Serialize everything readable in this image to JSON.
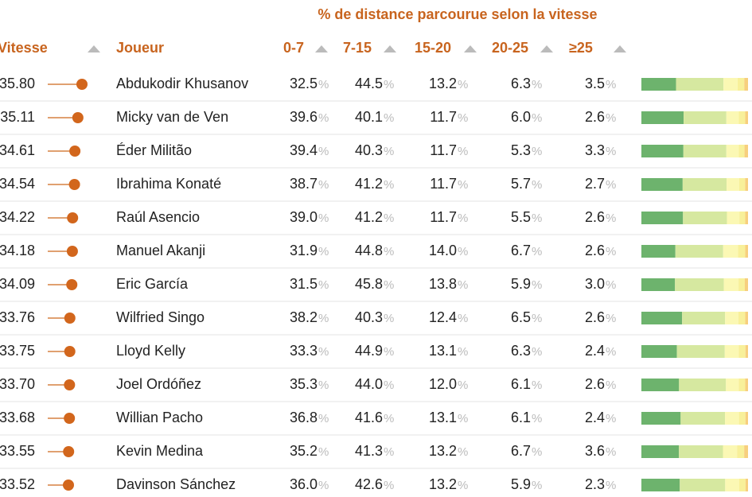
{
  "header": {
    "group_title": "% de distance parcourue selon la vitesse",
    "columns": [
      "Vitesse",
      "Joueur",
      "0-7",
      "7-15",
      "15-20",
      "20-25",
      "≥25"
    ]
  },
  "unit": "%",
  "rows": [
    {
      "speed": "35.80",
      "player": "Abdukodir Khusanov",
      "pct": [
        "32.5",
        "44.5",
        "13.2",
        "6.3",
        "3.5"
      ]
    },
    {
      "speed": "35.11",
      "player": "Micky van de Ven",
      "pct": [
        "39.6",
        "40.1",
        "11.7",
        "6.0",
        "2.6"
      ]
    },
    {
      "speed": "34.61",
      "player": "Éder Militão",
      "pct": [
        "39.4",
        "40.3",
        "11.7",
        "5.3",
        "3.3"
      ]
    },
    {
      "speed": "34.54",
      "player": "Ibrahima Konaté",
      "pct": [
        "38.7",
        "41.2",
        "11.7",
        "5.7",
        "2.7"
      ]
    },
    {
      "speed": "34.22",
      "player": "Raúl Asencio",
      "pct": [
        "39.0",
        "41.2",
        "11.7",
        "5.5",
        "2.6"
      ]
    },
    {
      "speed": "34.18",
      "player": "Manuel Akanji",
      "pct": [
        "31.9",
        "44.8",
        "14.0",
        "6.7",
        "2.6"
      ]
    },
    {
      "speed": "34.09",
      "player": "Eric García",
      "pct": [
        "31.5",
        "45.8",
        "13.8",
        "5.9",
        "3.0"
      ]
    },
    {
      "speed": "33.76",
      "player": "Wilfried Singo",
      "pct": [
        "38.2",
        "40.3",
        "12.4",
        "6.5",
        "2.6"
      ]
    },
    {
      "speed": "33.75",
      "player": "Lloyd Kelly",
      "pct": [
        "33.3",
        "44.9",
        "13.1",
        "6.3",
        "2.4"
      ]
    },
    {
      "speed": "33.70",
      "player": "Joel Ordóñez",
      "pct": [
        "35.3",
        "44.0",
        "12.0",
        "6.1",
        "2.6"
      ]
    },
    {
      "speed": "33.68",
      "player": "Willian Pacho",
      "pct": [
        "36.8",
        "41.6",
        "13.1",
        "6.1",
        "2.4"
      ]
    },
    {
      "speed": "33.55",
      "player": "Kevin Medina",
      "pct": [
        "35.2",
        "41.3",
        "13.2",
        "6.7",
        "3.6"
      ]
    },
    {
      "speed": "33.52",
      "player": "Davinson Sánchez",
      "pct": [
        "36.0",
        "42.6",
        "13.2",
        "5.9",
        "2.3"
      ]
    }
  ]
}
